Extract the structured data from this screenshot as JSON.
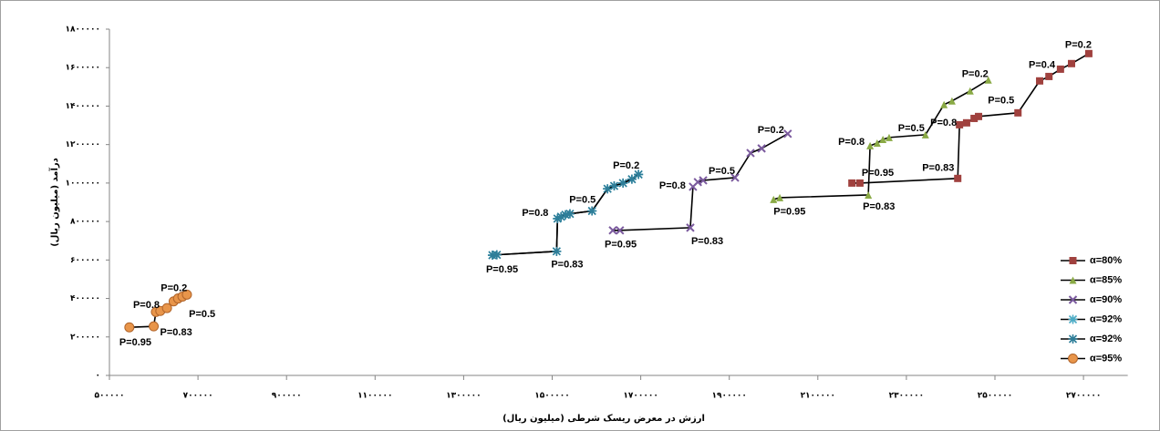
{
  "chart_data": {
    "type": "scatter",
    "xlabel": "ارزش در معرض ریسک شرطی (میلیون ریال)",
    "ylabel": "درآمد (میلیون ریال)",
    "xlim": [
      500000,
      2800000
    ],
    "ylim": [
      0,
      1800000
    ],
    "xticks": [
      {
        "value": 500000,
        "label": "۵۰۰۰۰۰"
      },
      {
        "value": 700000,
        "label": "۷۰۰۰۰۰"
      },
      {
        "value": 900000,
        "label": "۹۰۰۰۰۰"
      },
      {
        "value": 1100000,
        "label": "۱۱۰۰۰۰۰"
      },
      {
        "value": 1300000,
        "label": "۱۳۰۰۰۰۰"
      },
      {
        "value": 1500000,
        "label": "۱۵۰۰۰۰۰"
      },
      {
        "value": 1700000,
        "label": "۱۷۰۰۰۰۰"
      },
      {
        "value": 1900000,
        "label": "۱۹۰۰۰۰۰"
      },
      {
        "value": 2100000,
        "label": "۲۱۰۰۰۰۰"
      },
      {
        "value": 2300000,
        "label": "۲۳۰۰۰۰۰"
      },
      {
        "value": 2500000,
        "label": "۲۵۰۰۰۰۰"
      },
      {
        "value": 2700000,
        "label": "۲۷۰۰۰۰۰"
      }
    ],
    "yticks": [
      {
        "value": 0,
        "label": "۰"
      },
      {
        "value": 200000,
        "label": "۲۰۰۰۰۰"
      },
      {
        "value": 400000,
        "label": "۴۰۰۰۰۰"
      },
      {
        "value": 600000,
        "label": "۶۰۰۰۰۰"
      },
      {
        "value": 800000,
        "label": "۸۰۰۰۰۰"
      },
      {
        "value": 1000000,
        "label": "۱۰۰۰۰۰۰"
      },
      {
        "value": 1200000,
        "label": "۱۲۰۰۰۰۰"
      },
      {
        "value": 1400000,
        "label": "۱۴۰۰۰۰۰"
      },
      {
        "value": 1600000,
        "label": "۱۶۰۰۰۰۰"
      },
      {
        "value": 1800000,
        "label": "۱۸۰۰۰۰۰"
      }
    ],
    "grid": false,
    "legend": "right",
    "series": [
      {
        "name": "α=80%",
        "color": "#a0413e",
        "marker": "square",
        "x": [
          2177000,
          2195000,
          2416000,
          2420000,
          2436000,
          2453000,
          2463000,
          2552000,
          2601000,
          2622000,
          2648000,
          2673000,
          2712000
        ],
        "values": [
          1000000,
          1000000,
          1024000,
          1303000,
          1313000,
          1336000,
          1346000,
          1365000,
          1531000,
          1554000,
          1592000,
          1621000,
          1673000
        ],
        "point_labels": [
          null,
          "P=0.95",
          "P=0.83",
          "P=0.8",
          null,
          null,
          null,
          "P=0.5",
          "P=0.4",
          null,
          null,
          null,
          "P=0.2"
        ]
      },
      {
        "name": "α=85%",
        "color": "#8aaa45",
        "marker": "triangle",
        "x": [
          2000000,
          2014000,
          2214000,
          2218000,
          2234000,
          2247000,
          2261000,
          2343000,
          2385000,
          2403000,
          2444000,
          2485000
        ],
        "values": [
          915000,
          924000,
          938000,
          1194000,
          1208000,
          1227000,
          1237000,
          1251000,
          1408000,
          1427000,
          1479000,
          1536000
        ],
        "point_labels": [
          "P=0.95",
          null,
          "P=0.83",
          "P=0.8",
          null,
          null,
          null,
          "P=0.5",
          null,
          null,
          null,
          "P=0.2"
        ]
      },
      {
        "name": "α=90%",
        "color": "#7b5a9e",
        "marker": "x",
        "x": [
          1637000,
          1653000,
          1812000,
          1818000,
          1829000,
          1841000,
          1913000,
          1948000,
          1973000,
          2032000
        ],
        "values": [
          754000,
          754000,
          768000,
          981000,
          1005000,
          1014000,
          1028000,
          1156000,
          1180000,
          1256000
        ],
        "point_labels": [
          "P=0.95",
          null,
          "P=0.83",
          "P=0.8",
          null,
          null,
          "P=0.5",
          null,
          null,
          "P=0.2"
        ]
      },
      {
        "name": "α=92%",
        "color": "#4bacc6",
        "marker": "star",
        "x": [
          1365000,
          1375000,
          1510000,
          1512000,
          1520000,
          1530000,
          1540000,
          1590000,
          1625000,
          1640000,
          1660000,
          1680000,
          1695000
        ],
        "values": [
          625000,
          627000,
          645000,
          815000,
          825000,
          835000,
          840000,
          855000,
          970000,
          985000,
          1000000,
          1020000,
          1045000
        ],
        "point_labels": [
          "P=0.95",
          null,
          "P=0.83",
          "P=0.8",
          null,
          null,
          null,
          "P=0.5",
          null,
          null,
          "P=0.2",
          null,
          null
        ]
      },
      {
        "name": "α=92%",
        "color": "#2e7e99",
        "marker": "star",
        "x": [
          1365000,
          1375000,
          1510000,
          1512000,
          1520000,
          1530000,
          1540000,
          1590000,
          1625000,
          1640000,
          1660000,
          1680000,
          1695000
        ],
        "values": [
          625000,
          627000,
          645000,
          815000,
          825000,
          835000,
          840000,
          855000,
          970000,
          985000,
          1000000,
          1020000,
          1045000
        ]
      },
      {
        "name": "α=95%",
        "color": "#e8954a",
        "marker": "circle",
        "x": [
          545000,
          600000,
          605000,
          615000,
          630000,
          645000,
          655000,
          665000,
          675000
        ],
        "values": [
          250000,
          255000,
          330000,
          335000,
          350000,
          385000,
          400000,
          410000,
          420000
        ],
        "point_labels": [
          "P=0.95",
          "P=0.83",
          "P=0.8",
          null,
          "P=0.5",
          null,
          "P=0.2",
          null,
          null
        ]
      }
    ]
  }
}
